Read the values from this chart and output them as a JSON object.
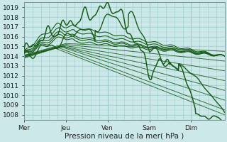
{
  "xlabel": "Pression niveau de la mer( hPa )",
  "ylim": [
    1007.5,
    1019.5
  ],
  "yticks": [
    1008,
    1009,
    1010,
    1011,
    1012,
    1013,
    1014,
    1015,
    1016,
    1017,
    1018,
    1019
  ],
  "xtick_positions": [
    0,
    1,
    2,
    3,
    4
  ],
  "xtick_labels": [
    "Mer",
    "Jeu",
    "Ven",
    "Sam",
    "Dim"
  ],
  "xlim": [
    0,
    4.8
  ],
  "bg_color": "#cce8e8",
  "grid_color": "#99cccc",
  "line_color": "#1a5c1a",
  "line_color2": "#2a7a2a",
  "xlabel_fontsize": 7.5,
  "tick_fontsize": 6.5
}
